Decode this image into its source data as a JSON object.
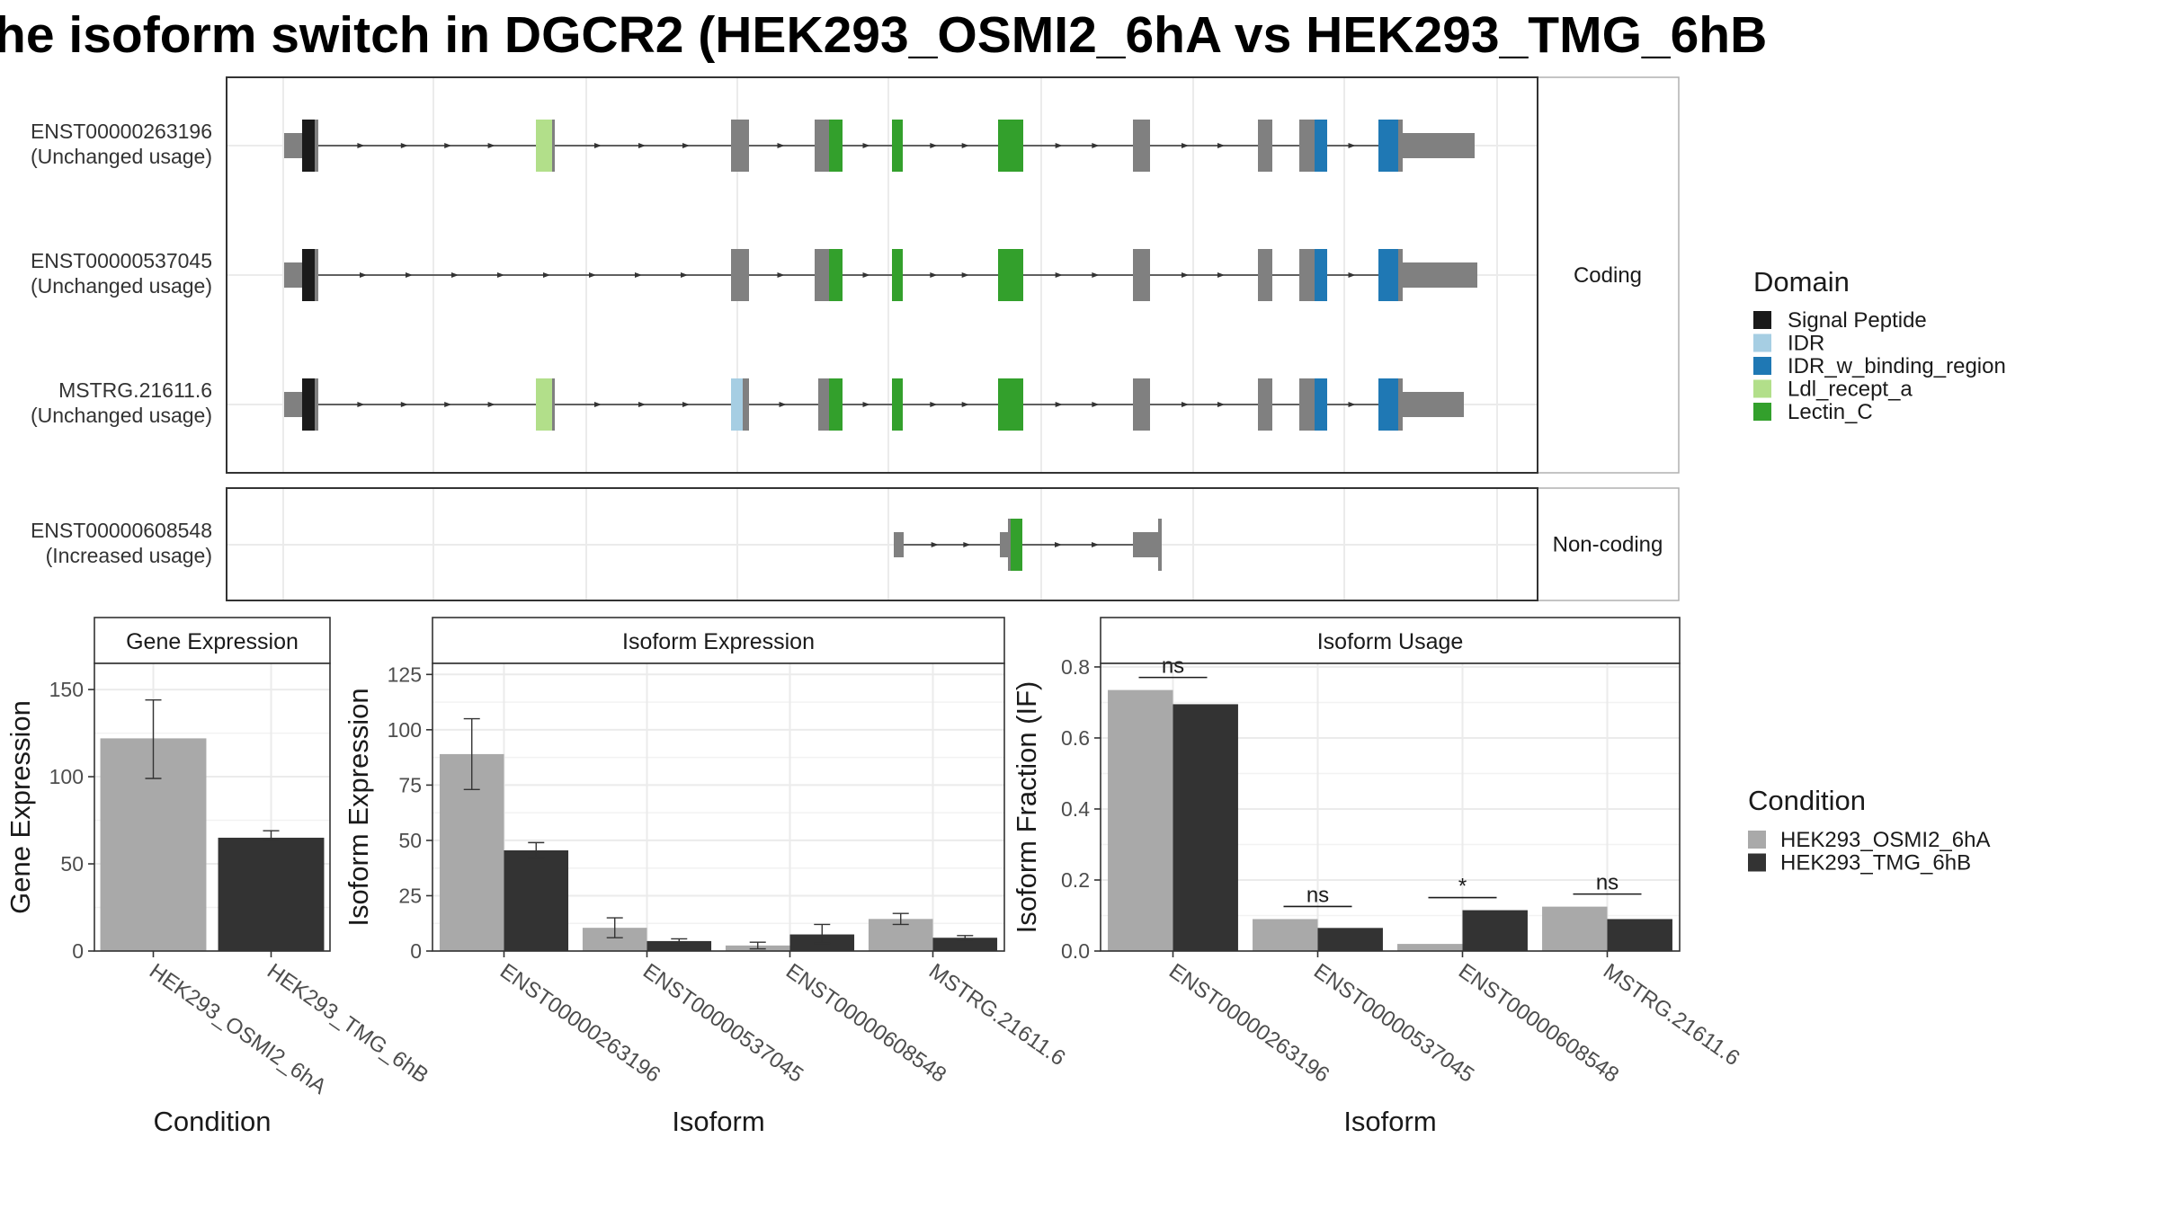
{
  "title": "he isoform switch in DGCR2 (HEK293_OSMI2_6hA vs HEK293_TMG_6hB",
  "colors": {
    "exon": "#808080",
    "grid": "#ebebeb",
    "frame": "#333333",
    "strip": "#ffffff",
    "cond_a": "#a9a9a9",
    "cond_b": "#333333"
  },
  "structure": {
    "panels": [
      {
        "label": "Coding",
        "transcripts": [
          "ENST00000263196",
          "ENST00000537045",
          "MSTRG.21611.6"
        ]
      },
      {
        "label": "Non-coding",
        "transcripts": [
          "ENST00000608548"
        ]
      }
    ],
    "transcripts": [
      {
        "id": "ENST00000263196",
        "usage": "(Unchanged usage)"
      },
      {
        "id": "ENST00000537045",
        "usage": "(Unchanged usage)"
      },
      {
        "id": "MSTRG.21611.6",
        "usage": "(Unchanged usage)"
      },
      {
        "id": "ENST00000608548",
        "usage": "(Increased usage)"
      }
    ]
  },
  "domain_legend": {
    "title": "Domain",
    "items": [
      {
        "name": "Signal Peptide",
        "color": "#1a1a1a"
      },
      {
        "name": "IDR",
        "color": "#a6cee3"
      },
      {
        "name": "IDR_w_binding_region",
        "color": "#1f78b4"
      },
      {
        "name": "Ldl_recept_a",
        "color": "#b2df8a"
      },
      {
        "name": "Lectin_C",
        "color": "#33a02c"
      }
    ]
  },
  "condition_legend": {
    "title": "Condition",
    "items": [
      {
        "name": "HEK293_OSMI2_6hA",
        "color": "#a9a9a9"
      },
      {
        "name": "HEK293_TMG_6hB",
        "color": "#333333"
      }
    ]
  },
  "chart_data": [
    {
      "type": "bar",
      "title": "Gene Expression",
      "xlabel": "Condition",
      "ylabel": "Gene Expression",
      "categories": [
        "HEK293_OSMI2_6hA",
        "HEK293_TMG_6hB"
      ],
      "values": [
        122,
        65
      ],
      "error": [
        [
          99,
          144
        ],
        [
          63,
          69
        ]
      ],
      "ylim": [
        0,
        165
      ],
      "yticks": [
        0,
        50,
        100,
        150
      ],
      "grid": true
    },
    {
      "type": "bar",
      "title": "Isoform Expression",
      "xlabel": "Isoform",
      "ylabel": "Isoform Expression",
      "categories": [
        "ENST00000263196",
        "ENST00000537045",
        "ENST00000608548",
        "MSTRG.21611.6"
      ],
      "series": [
        {
          "name": "HEK293_OSMI2_6hA",
          "values": [
            89,
            10.5,
            2.5,
            14.5
          ],
          "error": [
            [
              73,
              105
            ],
            [
              6,
              15
            ],
            [
              1,
              4
            ],
            [
              12,
              17
            ]
          ]
        },
        {
          "name": "HEK293_TMG_6hB",
          "values": [
            45.5,
            4.5,
            7.5,
            6
          ],
          "error": [
            [
              42,
              49
            ],
            [
              3,
              5.5
            ],
            [
              3.5,
              12
            ],
            [
              5,
              7
            ]
          ]
        }
      ],
      "ylim": [
        0,
        130
      ],
      "yticks": [
        0,
        25,
        50,
        75,
        100,
        125
      ],
      "grid": true
    },
    {
      "type": "bar",
      "title": "Isoform Usage",
      "xlabel": "Isoform",
      "ylabel": "Isoform Fraction (IF)",
      "categories": [
        "ENST00000263196",
        "ENST00000537045",
        "ENST00000608548",
        "MSTRG.21611.6"
      ],
      "series": [
        {
          "name": "HEK293_OSMI2_6hA",
          "values": [
            0.735,
            0.09,
            0.02,
            0.125
          ]
        },
        {
          "name": "HEK293_TMG_6hB",
          "values": [
            0.695,
            0.065,
            0.115,
            0.09
          ]
        }
      ],
      "significance": [
        "ns",
        "ns",
        "*",
        "ns"
      ],
      "ylim": [
        0,
        0.81
      ],
      "yticks": [
        "0.0",
        "0.2",
        "0.4",
        "0.6",
        "0.8"
      ],
      "grid": true
    }
  ]
}
